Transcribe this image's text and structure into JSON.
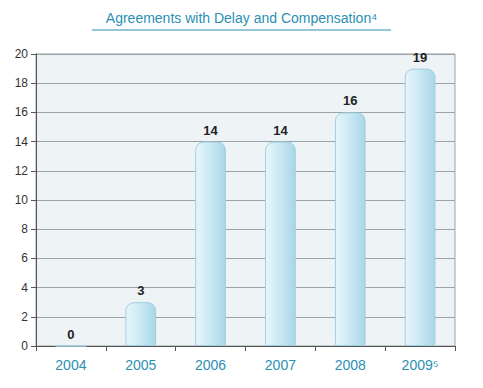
{
  "chart_data": {
    "type": "bar",
    "title": "Agreements with Delay and Compensation⁴",
    "categories": [
      "2004",
      "2005",
      "2006",
      "2007",
      "2008",
      "2009⁵"
    ],
    "values": [
      0,
      3,
      14,
      14,
      16,
      19
    ],
    "color": "#c9e8f3",
    "ylim": [
      0,
      20
    ],
    "yticks": [
      0,
      2,
      4,
      6,
      8,
      10,
      12,
      14,
      16,
      18,
      20
    ],
    "grid": true,
    "data_labels": true
  }
}
